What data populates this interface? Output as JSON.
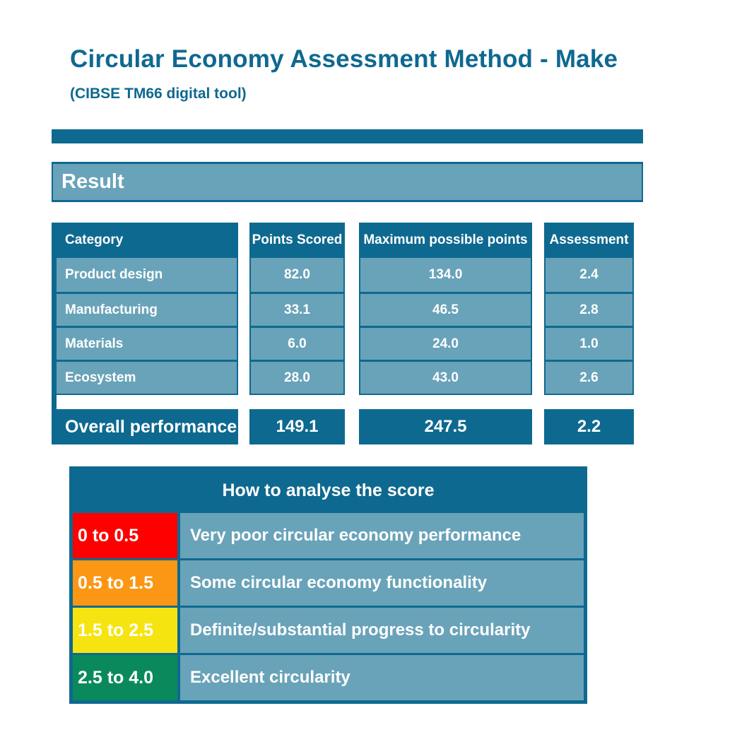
{
  "page": {
    "title": "Circular Economy Assessment Method - Make",
    "subtitle": "(CIBSE TM66 digital tool)"
  },
  "result_section": {
    "label": "Result"
  },
  "results_table": {
    "columns": {
      "category": "Category",
      "points": "Points Scored",
      "max": "Maximum possible points",
      "assessment": "Assessment"
    },
    "rows": [
      {
        "category": "Product design",
        "points": "82.0",
        "max": "134.0",
        "assessment": "2.4"
      },
      {
        "category": "Manufacturing",
        "points": "33.1",
        "max": "46.5",
        "assessment": "2.8"
      },
      {
        "category": "Materials",
        "points": "6.0",
        "max": "24.0",
        "assessment": "1.0"
      },
      {
        "category": "Ecosystem",
        "points": "28.0",
        "max": "43.0",
        "assessment": "2.6"
      }
    ],
    "overall": {
      "label": "Overall performance",
      "points": "149.1",
      "max": "247.5",
      "assessment": "2.2"
    }
  },
  "legend": {
    "title": "How to analyse the score",
    "rows": [
      {
        "range": "0 to 0.5",
        "description": "Very poor circular economy performance",
        "color": "#ff0000"
      },
      {
        "range": "0.5 to 1.5",
        "description": "Some circular economy functionality",
        "color": "#fb9714"
      },
      {
        "range": "1.5 to 2.5",
        "description": "Definite/substantial progress to circularity",
        "color": "#f6e411"
      },
      {
        "range": "2.5 to 4.0",
        "description": "Excellent circularity",
        "color": "#0a8a5c"
      }
    ]
  },
  "colors": {
    "dark_teal": "#0e6990",
    "light_blue": "#69a3b9"
  }
}
